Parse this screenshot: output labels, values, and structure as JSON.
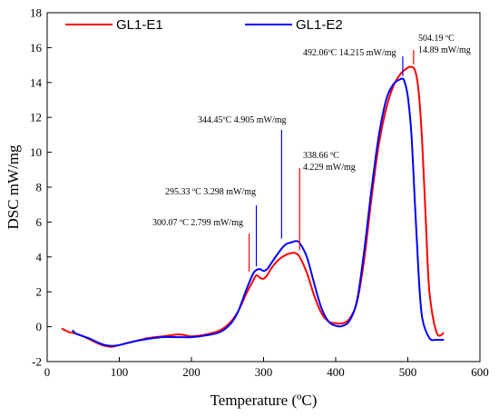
{
  "chart_data": {
    "type": "line",
    "xlabel": "Temperature (ºC)",
    "ylabel": "DSC mW/mg",
    "xlim": [
      0,
      600
    ],
    "ylim": [
      -2,
      18
    ],
    "xticks": [
      0,
      100,
      200,
      300,
      400,
      500,
      600
    ],
    "yticks": [
      -2,
      0,
      2,
      4,
      6,
      8,
      10,
      12,
      14,
      16,
      18
    ],
    "grid": false,
    "legend_position": "top-left",
    "series": [
      {
        "name": "GL1-E1",
        "color": "#ff0000",
        "x": [
          20,
          30,
          40,
          50,
          60,
          70,
          80,
          90,
          100,
          120,
          140,
          160,
          180,
          190,
          200,
          220,
          240,
          255,
          265,
          275,
          285,
          290,
          295,
          300,
          305,
          310,
          320,
          330,
          340,
          345,
          350,
          360,
          370,
          380,
          390,
          400,
          410,
          420,
          430,
          440,
          450,
          460,
          470,
          480,
          490,
          500,
          504.19,
          510,
          515,
          520,
          525,
          530,
          540,
          550
        ],
        "y": [
          -0.1,
          -0.3,
          -0.4,
          -0.55,
          -0.75,
          -0.95,
          -1.1,
          -1.15,
          -1.05,
          -0.85,
          -0.65,
          -0.55,
          -0.45,
          -0.48,
          -0.55,
          -0.45,
          -0.2,
          0.3,
          0.9,
          1.8,
          2.6,
          2.95,
          2.8,
          2.75,
          2.95,
          3.3,
          3.8,
          4.1,
          4.229,
          4.2,
          4.0,
          3.1,
          1.8,
          0.8,
          0.3,
          0.2,
          0.2,
          0.5,
          1.5,
          4.0,
          7.5,
          10.5,
          12.5,
          13.8,
          14.5,
          14.85,
          14.89,
          14.7,
          13.5,
          10.5,
          6.0,
          2.0,
          -0.35,
          -0.35
        ]
      },
      {
        "name": "GL1-E2",
        "color": "#0000ff",
        "x": [
          35,
          40,
          50,
          60,
          70,
          80,
          90,
          100,
          120,
          140,
          160,
          180,
          200,
          220,
          240,
          255,
          265,
          275,
          285,
          290,
          295.33,
          300,
          305,
          310,
          320,
          330,
          340,
          344.45,
          350,
          360,
          370,
          380,
          390,
          400,
          410,
          420,
          430,
          440,
          450,
          460,
          470,
          480,
          490,
          492.06,
          495,
          500,
          505,
          510,
          515,
          520,
          530,
          540,
          550
        ],
        "y": [
          -0.2,
          -0.4,
          -0.55,
          -0.7,
          -0.9,
          -1.05,
          -1.1,
          -1.05,
          -0.85,
          -0.7,
          -0.6,
          -0.6,
          -0.6,
          -0.5,
          -0.3,
          0.2,
          0.9,
          2.0,
          3.0,
          3.25,
          3.298,
          3.2,
          3.3,
          3.6,
          4.2,
          4.7,
          4.85,
          4.905,
          4.8,
          4.0,
          2.5,
          1.1,
          0.3,
          0.05,
          0.05,
          0.4,
          1.6,
          4.5,
          8.0,
          11.0,
          13.0,
          13.9,
          14.2,
          14.215,
          14.1,
          13.2,
          11.0,
          7.0,
          3.0,
          0.5,
          -0.65,
          -0.75,
          -0.75
        ]
      }
    ],
    "annotations": [
      {
        "lines": [
          "300.07 ºC  2.799 mW/mg"
        ],
        "x": 280,
        "y_peak": 3.0,
        "color": "#ff0000"
      },
      {
        "lines": [
          "295.33 ºC  3.298 mW/mg"
        ],
        "x": 290,
        "y_peak": 3.3,
        "color": "#0000ff"
      },
      {
        "lines": [
          "344.45ºC  4.905 mW/mg"
        ],
        "x": 325,
        "y_peak": 4.9,
        "color": "#0000ff"
      },
      {
        "lines": [
          "338.66 ºC",
          "4.229 mW/mg"
        ],
        "x": 350,
        "y_peak": 4.23,
        "color": "#ff0000"
      },
      {
        "lines": [
          "492.06ºC  14.215 mW/mg"
        ],
        "x": 493,
        "y_peak": 14.215,
        "color": "#0000ff"
      },
      {
        "lines": [
          "504.19 ºC",
          "14.89 mW/mg"
        ],
        "x": 508,
        "y_peak": 14.89,
        "color": "#ff0000"
      }
    ]
  }
}
